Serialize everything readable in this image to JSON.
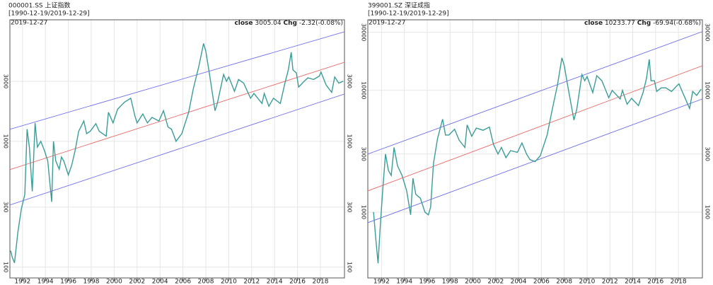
{
  "chart_data": [
    {
      "type": "line",
      "title": "000001.SS 上证指数",
      "subtitle": "[1990-12-19/2019-12-29]",
      "date_label": "2019-12-27",
      "close_value": "3005.04",
      "chg_label": "Chg",
      "chg_value": "-2.32(-0.08%)",
      "log_y": true,
      "grid": true,
      "xlim": [
        1990.9,
        2020.1
      ],
      "xticks": [
        1992,
        1994,
        1996,
        1998,
        2000,
        2002,
        2004,
        2006,
        2008,
        2010,
        2012,
        2014,
        2016,
        2018
      ],
      "ylim": [
        82,
        9250
      ],
      "yticks": [
        100,
        300,
        1000,
        3000
      ],
      "series": [
        {
          "name": "close",
          "color": "#3a9d97",
          "x": [
            1990.97,
            1991.1,
            1991.3,
            1991.6,
            1991.9,
            1992.2,
            1992.4,
            1992.6,
            1992.85,
            1993.1,
            1993.3,
            1993.6,
            1993.9,
            1994.2,
            1994.55,
            1994.7,
            1994.9,
            1995.2,
            1995.4,
            1995.6,
            1996.0,
            1996.3,
            1996.6,
            1996.9,
            1997.35,
            1997.6,
            1997.9,
            1998.4,
            1998.7,
            1999.3,
            1999.5,
            1999.9,
            2000.3,
            2000.9,
            2001.45,
            2001.8,
            2002.0,
            2002.5,
            2002.9,
            2003.3,
            2003.9,
            2004.3,
            2004.7,
            2005.0,
            2005.4,
            2005.9,
            2006.5,
            2006.9,
            2007.4,
            2007.8,
            2008.0,
            2008.3,
            2008.8,
            2009.0,
            2009.55,
            2009.8,
            2010.0,
            2010.5,
            2010.85,
            2011.3,
            2011.9,
            2012.2,
            2012.9,
            2013.1,
            2013.5,
            2013.9,
            2014.5,
            2014.9,
            2015.2,
            2015.45,
            2015.6,
            2015.9,
            2016.1,
            2016.5,
            2016.9,
            2017.4,
            2017.9,
            2018.05,
            2018.5,
            2018.98,
            2019.25,
            2019.6,
            2019.99
          ],
          "values": [
            135,
            120,
            108,
            190,
            290,
            380,
            1250,
            900,
            400,
            1400,
            900,
            1000,
            850,
            700,
            330,
            1000,
            700,
            600,
            750,
            700,
            540,
            650,
            850,
            1200,
            1450,
            1150,
            1200,
            1380,
            1200,
            1100,
            1700,
            1400,
            1800,
            2050,
            2200,
            1600,
            1400,
            1650,
            1400,
            1550,
            1450,
            1750,
            1300,
            1250,
            1000,
            1150,
            1700,
            2600,
            4000,
            6000,
            5200,
            3500,
            1750,
            2000,
            3400,
            3000,
            3250,
            2500,
            3100,
            2900,
            2200,
            2400,
            2000,
            2400,
            1900,
            2200,
            2000,
            2900,
            3700,
            5100,
            3700,
            3500,
            2700,
            2950,
            3200,
            3100,
            3300,
            3550,
            2800,
            2450,
            3250,
            2900,
            3005.04
          ]
        }
      ],
      "channels": [
        {
          "color": "#7070ee",
          "x": [
            1990.9,
            2020.1
          ],
          "values": [
            1247,
            7430
          ]
        },
        {
          "color": "#ee6a6a",
          "x": [
            1990.9,
            2020.1
          ],
          "values": [
            596,
            4256
          ]
        },
        {
          "color": "#7070ee",
          "x": [
            1990.9,
            2020.1
          ],
          "values": [
            312,
            2377
          ]
        }
      ]
    },
    {
      "type": "line",
      "title": "399001.SZ 深证成指",
      "subtitle": "[1990-12-19/2019-12-29]",
      "date_label": "2019-12-27",
      "close_value": "10233.77",
      "chg_label": "Chg",
      "chg_value": "-69.94(-0.68%)",
      "log_y": true,
      "grid": true,
      "xlim": [
        1990.8,
        2020.1
      ],
      "xticks": [
        1992,
        1994,
        1996,
        1998,
        2000,
        2002,
        2004,
        2006,
        2008,
        2010,
        2012,
        2014,
        2016,
        2018
      ],
      "ylim": [
        288,
        38000
      ],
      "yticks": [
        1000,
        3000,
        10000,
        30000
      ],
      "series": [
        {
          "name": "close",
          "color": "#3a9d97",
          "x": [
            1991.3,
            1991.5,
            1991.7,
            1991.9,
            1992.1,
            1992.35,
            1992.6,
            1992.85,
            1993.1,
            1993.4,
            1993.8,
            1994.2,
            1994.55,
            1994.75,
            1995.0,
            1995.4,
            1995.8,
            1996.1,
            1996.3,
            1996.55,
            1996.9,
            1997.35,
            1997.6,
            1997.9,
            1998.4,
            1998.8,
            1999.3,
            1999.5,
            1999.9,
            2000.3,
            2000.9,
            2001.45,
            2001.8,
            2002.2,
            2002.5,
            2002.9,
            2003.3,
            2003.9,
            2004.3,
            2004.7,
            2005.0,
            2005.45,
            2005.9,
            2006.5,
            2006.9,
            2007.4,
            2007.8,
            2008.0,
            2008.3,
            2008.85,
            2009.1,
            2009.55,
            2009.8,
            2010.0,
            2010.5,
            2010.85,
            2011.3,
            2011.9,
            2012.2,
            2012.9,
            2013.1,
            2013.5,
            2013.9,
            2014.5,
            2014.9,
            2015.2,
            2015.45,
            2015.6,
            2015.9,
            2016.1,
            2016.5,
            2016.9,
            2017.4,
            2017.9,
            2018.05,
            2018.5,
            2018.98,
            2019.25,
            2019.6,
            2019.99
          ],
          "values": [
            1000,
            600,
            380,
            800,
            1500,
            3000,
            2200,
            2000,
            3400,
            2400,
            2000,
            1500,
            950,
            1900,
            1400,
            1300,
            1000,
            950,
            1100,
            2500,
            4000,
            5800,
            4300,
            4300,
            4800,
            3900,
            3400,
            5200,
            4200,
            4900,
            4700,
            5000,
            3600,
            3000,
            3400,
            2800,
            3200,
            3100,
            3700,
            3000,
            2700,
            2600,
            2900,
            4300,
            6600,
            11000,
            18500,
            16000,
            11000,
            5700,
            7000,
            13500,
            12000,
            13000,
            9600,
            13200,
            12000,
            8700,
            10000,
            8500,
            10000,
            7700,
            8600,
            7500,
            9600,
            12500,
            18000,
            12000,
            12000,
            9800,
            10500,
            10500,
            9800,
            11000,
            11300,
            9000,
            7100,
            9800,
            9100,
            10233.77
          ]
        }
      ],
      "channels": [
        {
          "color": "#7070ee",
          "x": [
            1990.8,
            2020.1
          ],
          "values": [
            3000,
            30400
          ]
        },
        {
          "color": "#ee6a6a",
          "x": [
            1990.8,
            2020.1
          ],
          "values": [
            1494,
            15960
          ]
        },
        {
          "color": "#7070ee",
          "x": [
            1990.8,
            2020.1
          ],
          "values": [
            819,
            8510
          ]
        }
      ]
    }
  ]
}
